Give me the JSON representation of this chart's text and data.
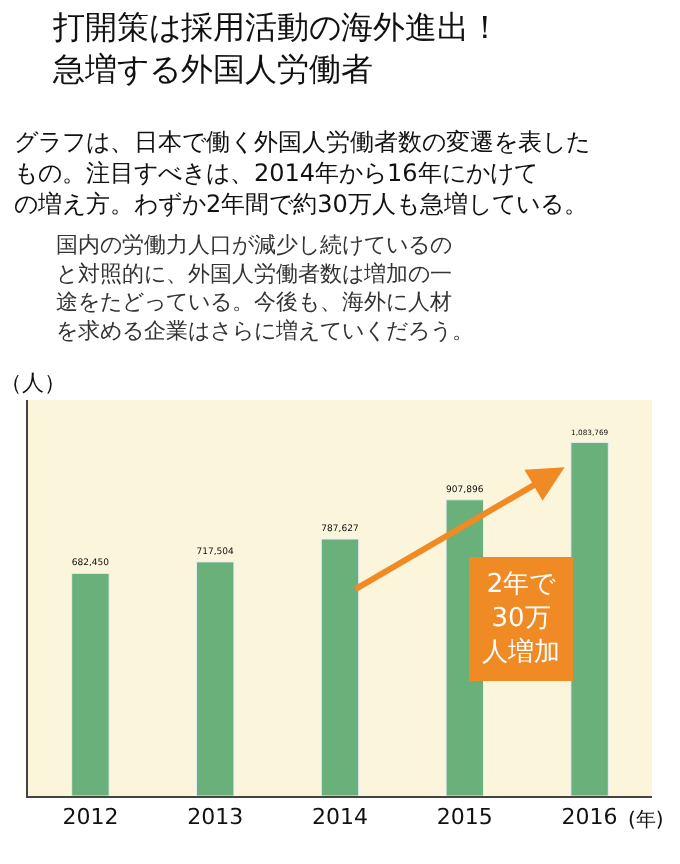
{
  "chart_data": {
    "type": "bar",
    "title": "打開策は採用活動の海外進出！急増する外国人労働者",
    "subtitle": "グラフは、日本で働く外国人労働者数の変遷を表したもの。注目すべきは、2014年から16年にかけての増え方。わずか2年間で約30万人も急増している。",
    "annotations": [
      "国内の労働力人口が減少し続けているのと対照的に、外国人労働者数は増加の一途をたどっている。今後も、海外に人材を求める企業はさらに増えていくだろう。",
      "2年で30万人増加"
    ],
    "ylabel": "（人）",
    "xlabel": "(年)",
    "categories": [
      "2012",
      "2013",
      "2014",
      "2015",
      "2016"
    ],
    "values": [
      682450,
      717504,
      787627,
      907896,
      1083769
    ],
    "value_labels": [
      "682,450",
      "717,504",
      "787,627",
      "907,896",
      "1,083,769"
    ],
    "color": "#6ab07a",
    "grid": false,
    "legend": false
  }
}
